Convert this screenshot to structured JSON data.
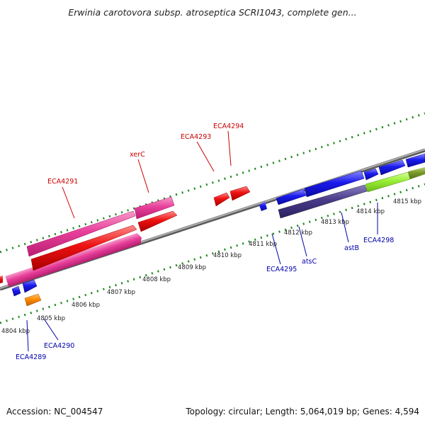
{
  "title": "Erwinia carotovora subsp. atroseptica SCRI1043, complete gen...",
  "footer": {
    "accession": "Accession: NC_004547",
    "summary": "Topology: circular; Length: 5,064,019 bp; Genes: 4,594"
  },
  "colors": {
    "backbone": "#8a8a8a",
    "tick": "#1f8a1f",
    "label_top": "#cc0000",
    "label_bottom": "#0000aa",
    "leader_top": "#cc0000",
    "leader_bottom": "#0000aa"
  },
  "scale_labels": [
    "4804 kbp",
    "4805 kbp",
    "4806 kbp",
    "4807 kbp",
    "4808 kbp",
    "4809 kbp",
    "4810 kbp",
    "4811 kbp",
    "4812 kbp",
    "4813 kbp",
    "4814 kbp",
    "4815 kbp"
  ],
  "genes_top": [
    {
      "label": "ECA4291",
      "color": "#e8409a"
    },
    {
      "label": "xerC",
      "color": "#e8409a"
    },
    {
      "label": "ECA4293",
      "color": "#ee1111"
    },
    {
      "label": "ECA4294",
      "color": "#ee1111"
    }
  ],
  "genes_bottom": [
    {
      "label": "ECA4289",
      "color": "#1a1aee"
    },
    {
      "label": "ECA4290",
      "color": "#1a1aee"
    },
    {
      "label": "ECA4295",
      "color": "#1a1aee"
    },
    {
      "label": "atsC",
      "color": "#1a1aee"
    },
    {
      "label": "astB",
      "color": "#4a3a8a"
    },
    {
      "label": "ECA4298",
      "color": "#99ee33"
    }
  ]
}
